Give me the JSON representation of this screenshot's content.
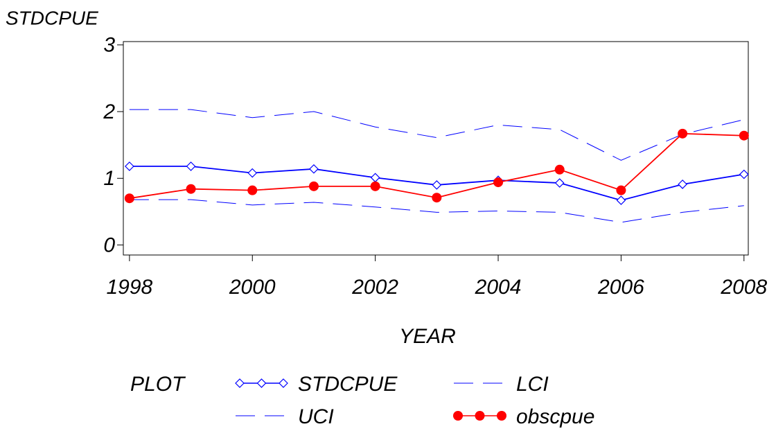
{
  "chart_data": {
    "type": "line",
    "y_label": "STDCPUE",
    "x_label": "YEAR",
    "legend_title": "PLOT",
    "x": [
      1998,
      1999,
      2000,
      2001,
      2002,
      2003,
      2004,
      2005,
      2006,
      2007,
      2008
    ],
    "series": [
      {
        "name": "STDCPUE",
        "color": "#0000ff",
        "line_style": "solid",
        "marker": "diamond",
        "values": [
          1.18,
          1.18,
          1.08,
          1.14,
          1.01,
          0.9,
          0.97,
          0.93,
          0.67,
          0.91,
          1.06
        ]
      },
      {
        "name": "LCI",
        "color": "#0000ff",
        "line_style": "dashed",
        "marker": null,
        "values": [
          0.68,
          0.68,
          0.6,
          0.64,
          0.57,
          0.49,
          0.51,
          0.49,
          0.34,
          0.49,
          0.59
        ]
      },
      {
        "name": "UCI",
        "color": "#0000ff",
        "line_style": "dashed",
        "marker": null,
        "values": [
          2.03,
          2.03,
          1.91,
          2.0,
          1.77,
          1.61,
          1.8,
          1.73,
          1.27,
          1.66,
          1.88
        ]
      },
      {
        "name": "obscpue",
        "color": "#ff0000",
        "line_style": "solid",
        "marker": "circle",
        "values": [
          0.7,
          0.84,
          0.82,
          0.88,
          0.88,
          0.71,
          0.94,
          1.13,
          0.82,
          1.67,
          1.64
        ]
      }
    ],
    "xlim": [
      1997.9,
      2008.07
    ],
    "xticks": [
      1998,
      2000,
      2002,
      2004,
      2006,
      2008
    ],
    "ylim": [
      -0.15,
      3.05
    ],
    "yticks": [
      0,
      1,
      2,
      3
    ]
  }
}
